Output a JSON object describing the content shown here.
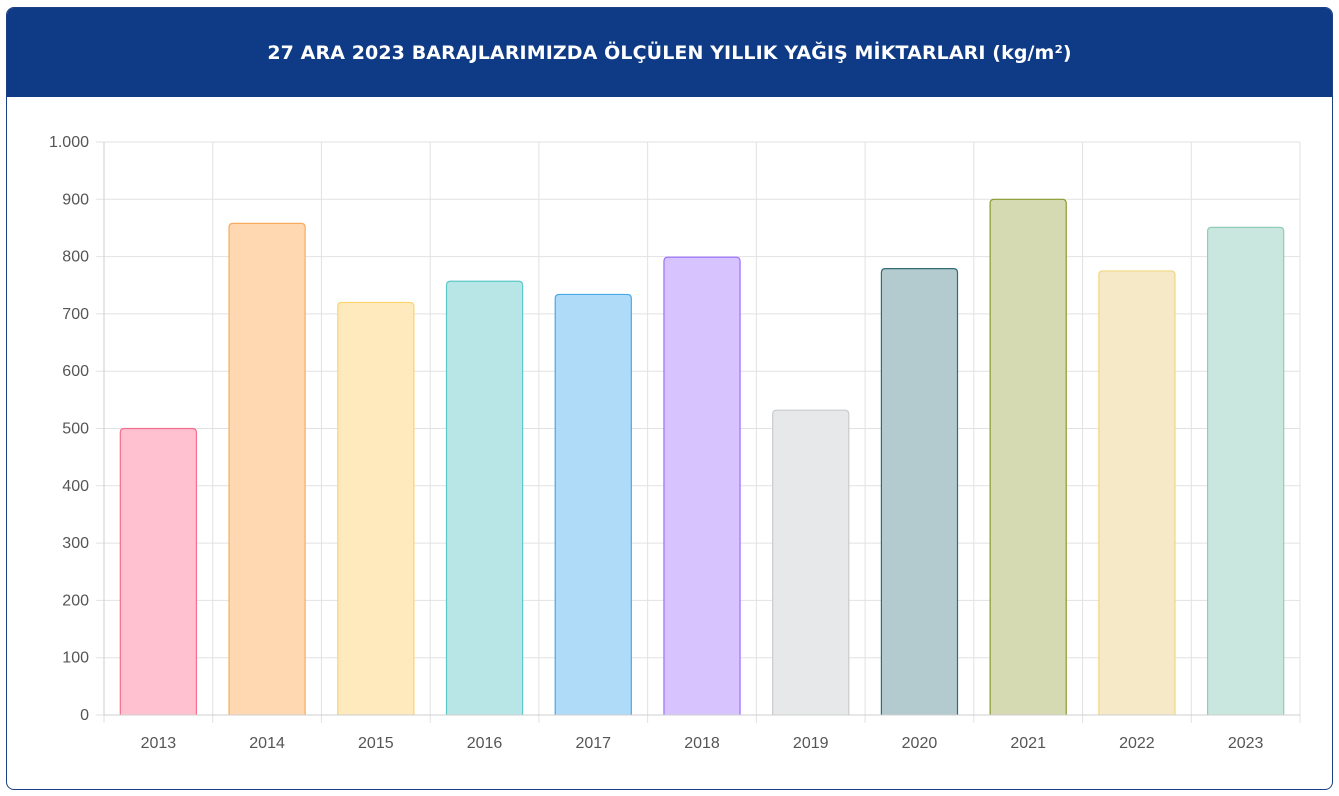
{
  "header": {
    "title": "27 ARA 2023 BARAJLARIMIZDA ÖLÇÜLEN YILLIK YAĞIŞ MİKTARLARI (kg/m²)"
  },
  "colors": {
    "header_bg": "#0f3a85",
    "grid": "#e2e2e2"
  },
  "chart_data": {
    "type": "bar",
    "title": "27 ARA 2023 BARAJLARIMIZDA ÖLÇÜLEN YILLIK YAĞIŞ MİKTARLARI (kg/m²)",
    "categories": [
      "2013",
      "2014",
      "2015",
      "2016",
      "2017",
      "2018",
      "2019",
      "2020",
      "2021",
      "2022",
      "2023"
    ],
    "values": [
      500,
      858,
      720,
      757,
      734,
      799,
      532,
      779,
      900,
      775,
      851
    ],
    "ylim": [
      0,
      1000
    ],
    "yticks": [
      0,
      100,
      200,
      300,
      400,
      500,
      600,
      700,
      800,
      900,
      1000
    ],
    "ytick_labels": [
      "0",
      "100",
      "200",
      "300",
      "400",
      "500",
      "600",
      "700",
      "800",
      "900",
      "1.000"
    ],
    "grid": true,
    "legend": "none",
    "bar_fills": [
      "#ffc0cf",
      "#ffd7b0",
      "#feeabc",
      "#b8e5e5",
      "#b0dbf8",
      "#d7c4ff",
      "#e7e8ea",
      "#b3cbcf",
      "#d5dab2",
      "#f5e9c8",
      "#c9e7de"
    ],
    "bar_strokes": [
      "#f2718f",
      "#f8ab5f",
      "#fbd36d",
      "#5ec8c8",
      "#47a9ea",
      "#9c6fff",
      "#cacbcd",
      "#356c74",
      "#8a9a2f",
      "#f0d680",
      "#8fcdb6"
    ]
  }
}
